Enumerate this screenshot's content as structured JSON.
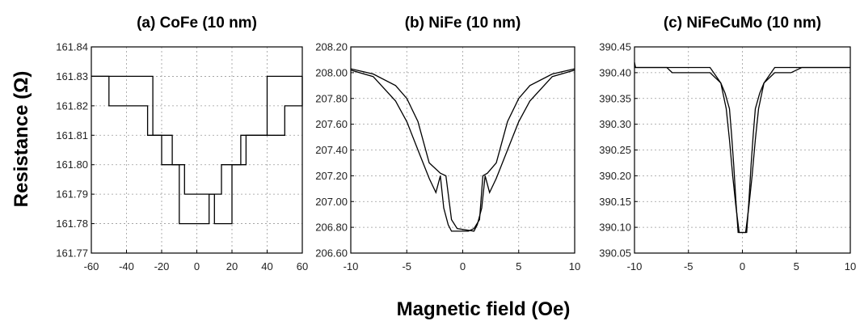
{
  "figure": {
    "ylabel": "Resistance (Ω)",
    "xlabel": "Magnetic field (Oe)"
  },
  "chart_data": [
    {
      "type": "line",
      "title": "(a) CoFe (10 nm)",
      "xlim": [
        -60,
        60
      ],
      "ylim": [
        161.77,
        161.84
      ],
      "xticks": [
        -60,
        -40,
        -20,
        0,
        20,
        40,
        60
      ],
      "yticks": [
        161.77,
        161.78,
        161.79,
        161.8,
        161.81,
        161.82,
        161.83,
        161.84
      ],
      "yticklabels": [
        "161.77",
        "161.78",
        "161.79",
        "161.80",
        "161.81",
        "161.82",
        "161.83",
        "161.84"
      ],
      "xticklabels": [
        "-60",
        "-40",
        "-20",
        "0",
        "20",
        "40",
        "60"
      ],
      "grid": true,
      "step": true,
      "series": [
        {
          "x": [
            -60,
            -50,
            -28,
            -20,
            -10,
            7,
            14,
            25,
            40,
            60
          ],
          "y": [
            161.83,
            161.82,
            161.81,
            161.8,
            161.78,
            161.79,
            161.8,
            161.81,
            161.83,
            161.83
          ]
        },
        {
          "x": [
            -60,
            -40,
            -25,
            -14,
            -7,
            10,
            20,
            28,
            50,
            60
          ],
          "y": [
            161.83,
            161.83,
            161.81,
            161.8,
            161.79,
            161.78,
            161.8,
            161.81,
            161.82,
            161.83
          ]
        }
      ]
    },
    {
      "type": "line",
      "title": "(b) NiFe (10 nm)",
      "xlim": [
        -10,
        10
      ],
      "ylim": [
        206.6,
        208.2
      ],
      "xticks": [
        -10,
        -5,
        0,
        5,
        10
      ],
      "xticklabels": [
        "-10",
        "-5",
        "0",
        "5",
        "10"
      ],
      "yticks": [
        206.6,
        206.8,
        207.0,
        207.2,
        207.4,
        207.6,
        207.8,
        208.0,
        208.2
      ],
      "yticklabels": [
        "206.60",
        "206.80",
        "207.00",
        "207.20",
        "207.40",
        "207.60",
        "207.80",
        "208.00",
        "208.20"
      ],
      "grid": true,
      "step": false,
      "series": [
        {
          "x": [
            -10,
            -8,
            -6,
            -5,
            -4,
            -3,
            -2.4,
            -2.0,
            -1.7,
            -1.3,
            -1.0,
            0.5,
            1.0,
            1.5,
            1.8,
            2.2,
            3,
            4,
            5,
            6,
            8,
            10
          ],
          "y": [
            208.02,
            207.97,
            207.78,
            207.62,
            207.4,
            207.18,
            207.07,
            207.2,
            206.95,
            206.82,
            206.77,
            206.77,
            206.79,
            206.86,
            207.2,
            207.22,
            207.3,
            207.62,
            207.8,
            207.9,
            207.99,
            208.03
          ]
        },
        {
          "x": [
            -10,
            -8,
            -6,
            -5,
            -4,
            -3,
            -2.0,
            -1.5,
            -1.0,
            -0.5,
            1.0,
            1.3,
            1.7,
            2.0,
            2.4,
            3,
            4,
            5,
            6,
            8,
            10
          ],
          "y": [
            208.03,
            207.99,
            207.9,
            207.8,
            207.62,
            207.3,
            207.22,
            207.2,
            206.86,
            206.79,
            206.77,
            206.82,
            206.95,
            207.2,
            207.07,
            207.18,
            207.4,
            207.62,
            207.78,
            207.97,
            208.02
          ]
        }
      ]
    },
    {
      "type": "line",
      "title": "(c) NiFeCuMo (10 nm)",
      "xlim": [
        -10,
        10
      ],
      "ylim": [
        390.05,
        390.45
      ],
      "xticks": [
        -10,
        -5,
        0,
        5,
        10
      ],
      "xticklabels": [
        "-10",
        "-5",
        "0",
        "5",
        "10"
      ],
      "yticks": [
        390.05,
        390.1,
        390.15,
        390.2,
        390.25,
        390.3,
        390.35,
        390.4,
        390.45
      ],
      "yticklabels": [
        "390.05",
        "390.10",
        "390.15",
        "390.20",
        "390.25",
        "390.30",
        "390.35",
        "390.40",
        "390.45"
      ],
      "grid": true,
      "step": false,
      "series": [
        {
          "x": [
            -10,
            -9.9,
            -7,
            -6.5,
            -3,
            -2,
            -1.6,
            -1.2,
            -1.0,
            -0.8,
            -0.6,
            -0.4,
            0.3,
            0.6,
            0.9,
            1.2,
            1.5,
            2,
            3,
            5.5,
            10
          ],
          "y": [
            390.42,
            390.41,
            390.41,
            390.4,
            390.4,
            390.38,
            390.36,
            390.33,
            390.28,
            390.22,
            390.15,
            390.09,
            390.09,
            390.14,
            390.2,
            390.27,
            390.33,
            390.38,
            390.41,
            390.41,
            390.41
          ]
        },
        {
          "x": [
            -10,
            -3,
            -2,
            -1.5,
            -1.2,
            -0.9,
            -0.6,
            -0.3,
            0.4,
            0.6,
            0.8,
            1.0,
            1.2,
            1.6,
            2,
            3,
            4.5,
            5.5,
            10
          ],
          "y": [
            390.41,
            390.41,
            390.38,
            390.33,
            390.27,
            390.2,
            390.14,
            390.09,
            390.09,
            390.15,
            390.22,
            390.28,
            390.33,
            390.36,
            390.38,
            390.4,
            390.4,
            390.41,
            390.41
          ]
        }
      ]
    }
  ]
}
